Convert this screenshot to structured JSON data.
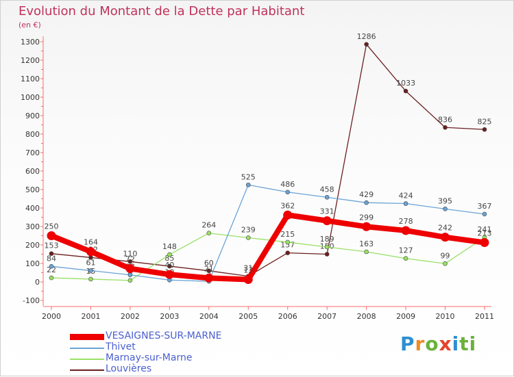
{
  "chart_data": {
    "type": "line",
    "title": "Evolution du Montant de la Dette par Habitant",
    "subtitle": "(en €)",
    "xlabel": "",
    "ylabel": "",
    "x": [
      "2000",
      "2001",
      "2002",
      "2003",
      "2004",
      "2005",
      "2006",
      "2007",
      "2008",
      "2009",
      "2010",
      "2011"
    ],
    "ylim": [
      -100,
      1300
    ],
    "yticks": [
      -100,
      0,
      100,
      200,
      300,
      400,
      500,
      600,
      700,
      800,
      900,
      1000,
      1100,
      1200,
      1300
    ],
    "grid": false,
    "legend_position": "bottom-left",
    "series": [
      {
        "name": "VESAIGNES-SUR-MARNE",
        "color": "#ee0000",
        "values": [
          250,
          164,
          72,
          40,
          21,
          13,
          362,
          331,
          299,
          278,
          242,
          213
        ]
      },
      {
        "name": "Thivet",
        "color": "#6ba3d6",
        "values": [
          84,
          61,
          38,
          10,
          3,
          525,
          486,
          458,
          429,
          424,
          395,
          367
        ]
      },
      {
        "name": "Marnay-sur-Marne",
        "color": "#99e065",
        "values": [
          22,
          15,
          8,
          148,
          264,
          239,
          215,
          189,
          163,
          127,
          99,
          241
        ]
      },
      {
        "name": "Louvières",
        "color": "#6b1f1f",
        "values": [
          153,
          132,
          110,
          85,
          60,
          31,
          157,
          150,
          1286,
          1033,
          836,
          825
        ]
      }
    ]
  },
  "branding": {
    "logo_text": "Proxiti"
  }
}
